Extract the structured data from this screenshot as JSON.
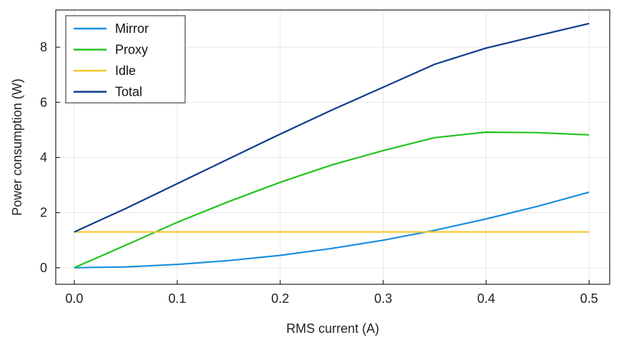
{
  "chart_data": {
    "type": "line",
    "xlabel": "RMS current (A)",
    "ylabel": "Power consumption (W)",
    "xlim": [
      -0.018,
      0.52
    ],
    "ylim": [
      -0.6,
      9.35
    ],
    "xticks": [
      "0.0",
      "0.1",
      "0.2",
      "0.3",
      "0.4",
      "0.5"
    ],
    "yticks": [
      "0",
      "2",
      "4",
      "6",
      "8"
    ],
    "grid": true,
    "legend_position": "top-left",
    "x": [
      0.0,
      0.05,
      0.1,
      0.15,
      0.2,
      0.25,
      0.3,
      0.35,
      0.4,
      0.45,
      0.5
    ],
    "series": [
      {
        "name": "Mirror",
        "color": "#1a8fe0",
        "values": [
          0.0,
          0.03,
          0.12,
          0.26,
          0.45,
          0.7,
          1.0,
          1.36,
          1.77,
          2.23,
          2.74
        ]
      },
      {
        "name": "Proxy",
        "color": "#22c41e",
        "values": [
          0.0,
          0.82,
          1.65,
          2.4,
          3.1,
          3.73,
          4.25,
          4.72,
          4.92,
          4.9,
          4.82
        ]
      },
      {
        "name": "Idle",
        "color": "#f7c52a",
        "values": [
          1.3,
          1.3,
          1.3,
          1.3,
          1.3,
          1.3,
          1.3,
          1.3,
          1.3,
          1.3,
          1.3
        ]
      },
      {
        "name": "Total",
        "color": "#0d3b8c",
        "values": [
          1.3,
          2.15,
          3.05,
          3.95,
          4.85,
          5.72,
          6.55,
          7.38,
          7.97,
          8.42,
          8.86
        ]
      }
    ]
  }
}
